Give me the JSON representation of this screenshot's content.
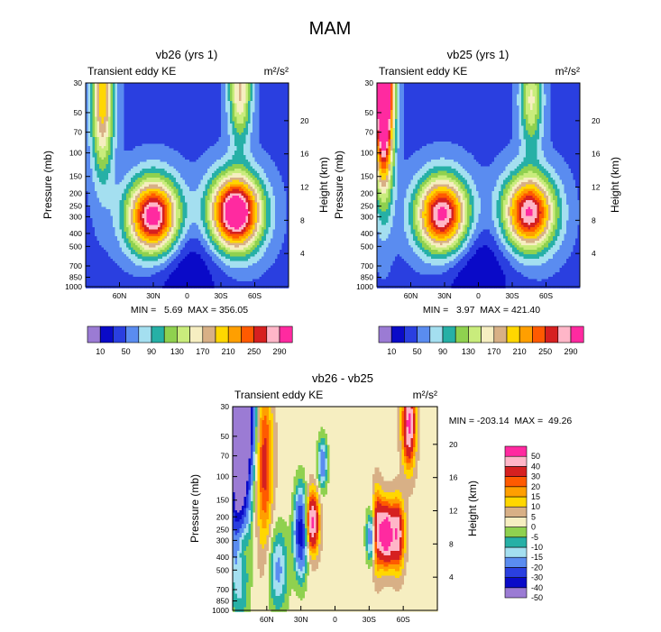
{
  "figure_title": "MAM",
  "colors": {
    "abs_palette": [
      "#9b7bd4",
      "#0a0ac8",
      "#2a3fe0",
      "#5a8cf0",
      "#a4dff0",
      "#26b0a6",
      "#8fd14f",
      "#c9ec7c",
      "#f6eec1",
      "#d8b086",
      "#ffd700",
      "#ff9f00",
      "#ff5a00",
      "#d62020",
      "#ffb6c8",
      "#ff2aa0"
    ],
    "diff_palette": [
      "#9b7bd4",
      "#0a0ac8",
      "#2a3fe0",
      "#5a8cf0",
      "#a4dff0",
      "#26b0a6",
      "#8fd14f",
      "#f6eec1",
      "#d8b086",
      "#ffd700",
      "#ff9f00",
      "#ff5a00",
      "#d62020",
      "#ffb6c8",
      "#ff2aa0"
    ]
  },
  "chart_data": [
    {
      "type": "heatmap",
      "title": "vb26 (yrs 1)",
      "subtitle_left": "Transient eddy KE",
      "units": "m²/s²",
      "ylabel": "Pressure (mb)",
      "ylabel_right": "Height (km)",
      "x_ticks": [
        "60N",
        "30N",
        "0",
        "30S",
        "60S"
      ],
      "x_tick_lats": [
        60,
        30,
        0,
        -30,
        -60
      ],
      "xlim": [
        90,
        -90
      ],
      "y_ticks": [
        30,
        50,
        70,
        100,
        150,
        200,
        250,
        300,
        400,
        500,
        700,
        850,
        1000
      ],
      "ylim": [
        1000,
        30
      ],
      "y_scale": "log",
      "height_ticks": [
        4,
        8,
        12,
        16,
        20
      ],
      "stats": "MIN =   5.69  MAX = 356.05",
      "min": 5.69,
      "max": 356.05,
      "colorbar_labels": [
        "10",
        "50",
        "90",
        "130",
        "170",
        "210",
        "250",
        "290"
      ],
      "levels": [
        10,
        30,
        50,
        70,
        90,
        110,
        130,
        150,
        170,
        190,
        210,
        230,
        250,
        270,
        290
      ],
      "field": {
        "base": 45,
        "blobs": [
          {
            "lat": 30,
            "p": 300,
            "amp": 270,
            "wlat": 16,
            "wlp": 0.45
          },
          {
            "lat": -43,
            "p": 280,
            "amp": 300,
            "wlat": 16,
            "wlp": 0.45
          },
          {
            "lat": 75,
            "p": 40,
            "amp": 160,
            "wlat": 7,
            "wlp": 0.9
          },
          {
            "lat": -47,
            "p": 35,
            "amp": 130,
            "wlat": 7,
            "wlp": 0.6
          },
          {
            "lat": 2,
            "p": 700,
            "amp": -35,
            "wlat": 25,
            "wlp": 0.6
          }
        ]
      }
    },
    {
      "type": "heatmap",
      "title": "vb25 (yrs 1)",
      "subtitle_left": "Transient eddy KE",
      "units": "m²/s²",
      "ylabel": "Pressure (mb)",
      "ylabel_right": "Height (km)",
      "x_ticks": [
        "60N",
        "30N",
        "0",
        "30S",
        "60S"
      ],
      "x_tick_lats": [
        60,
        30,
        0,
        -30,
        -60
      ],
      "xlim": [
        90,
        -90
      ],
      "y_ticks": [
        30,
        50,
        70,
        100,
        150,
        200,
        250,
        300,
        400,
        500,
        700,
        850,
        1000
      ],
      "ylim": [
        1000,
        30
      ],
      "y_scale": "log",
      "height_ticks": [
        4,
        8,
        12,
        16,
        20
      ],
      "stats": "MIN =   3.97  MAX = 421.40",
      "min": 3.97,
      "max": 421.4,
      "colorbar_labels": [
        "10",
        "50",
        "90",
        "130",
        "170",
        "210",
        "250",
        "290"
      ],
      "levels": [
        10,
        30,
        50,
        70,
        90,
        110,
        130,
        150,
        170,
        190,
        210,
        230,
        250,
        270,
        290
      ],
      "field": {
        "base": 45,
        "blobs": [
          {
            "lat": 32,
            "p": 290,
            "amp": 260,
            "wlat": 16,
            "wlp": 0.45
          },
          {
            "lat": -45,
            "p": 280,
            "amp": 250,
            "wlat": 16,
            "wlp": 0.45
          },
          {
            "lat": 84,
            "p": 35,
            "amp": 380,
            "wlat": 6,
            "wlp": 1.1
          },
          {
            "lat": -47,
            "p": 40,
            "amp": 110,
            "wlat": 7,
            "wlp": 0.6
          },
          {
            "lat": 2,
            "p": 700,
            "amp": -35,
            "wlat": 25,
            "wlp": 0.6
          }
        ]
      }
    },
    {
      "type": "heatmap",
      "title": "vb26 - vb25",
      "subtitle_left": "Transient eddy KE",
      "units": "m²/s²",
      "ylabel": "Pressure (mb)",
      "ylabel_right": "Height (km)",
      "x_ticks": [
        "60N",
        "30N",
        "0",
        "30S",
        "60S"
      ],
      "x_tick_lats": [
        60,
        30,
        0,
        -30,
        -60
      ],
      "xlim": [
        90,
        -90
      ],
      "y_ticks": [
        30,
        50,
        70,
        100,
        150,
        200,
        250,
        300,
        400,
        500,
        700,
        850,
        1000
      ],
      "ylim": [
        1000,
        30
      ],
      "y_scale": "log",
      "height_ticks": [
        4,
        8,
        12,
        16,
        20
      ],
      "stats": "MIN = -203.14  MAX =  49.26",
      "min": -203.14,
      "max": 49.26,
      "colorbar_labels": [
        "50",
        "40",
        "30",
        "20",
        "15",
        "10",
        "5",
        "0",
        "-5",
        "-10",
        "-15",
        "-20",
        "-30",
        "-40",
        "-50"
      ],
      "levels": [
        -50,
        -40,
        -30,
        -20,
        -15,
        -10,
        -5,
        0,
        5,
        10,
        15,
        20,
        30,
        40,
        50
      ],
      "field": {
        "base": -2,
        "blobs": [
          {
            "lat": 84,
            "p": 60,
            "amp": -80,
            "wlat": 6,
            "wlp": 1.4
          },
          {
            "lat": 77,
            "p": 40,
            "amp": -40,
            "wlat": 5,
            "wlp": 0.6
          },
          {
            "lat": 62,
            "p": 80,
            "amp": 25,
            "wlat": 5,
            "wlp": 1.0
          },
          {
            "lat": 30,
            "p": 260,
            "amp": -45,
            "wlat": 4,
            "wlp": 0.5
          },
          {
            "lat": 20,
            "p": 220,
            "amp": 45,
            "wlat": 4,
            "wlp": 0.35
          },
          {
            "lat": 11,
            "p": 80,
            "amp": -25,
            "wlat": 3,
            "wlp": 0.3
          },
          {
            "lat": -45,
            "p": 270,
            "amp": 55,
            "wlat": 4,
            "wlp": 0.35
          },
          {
            "lat": -37,
            "p": 250,
            "amp": 35,
            "wlat": 3,
            "wlp": 0.45
          },
          {
            "lat": -55,
            "p": 270,
            "amp": 40,
            "wlat": 4,
            "wlp": 0.4
          },
          {
            "lat": -32,
            "p": 280,
            "amp": -28,
            "wlat": 3,
            "wlp": 0.3
          },
          {
            "lat": -65,
            "p": 40,
            "amp": 45,
            "wlat": 4,
            "wlp": 0.5
          },
          {
            "lat": 82,
            "p": 300,
            "amp": 25,
            "wlat": 4,
            "wlp": 0.4
          },
          {
            "lat": 50,
            "p": 500,
            "amp": -20,
            "wlat": 6,
            "wlp": 0.5
          }
        ]
      }
    }
  ]
}
